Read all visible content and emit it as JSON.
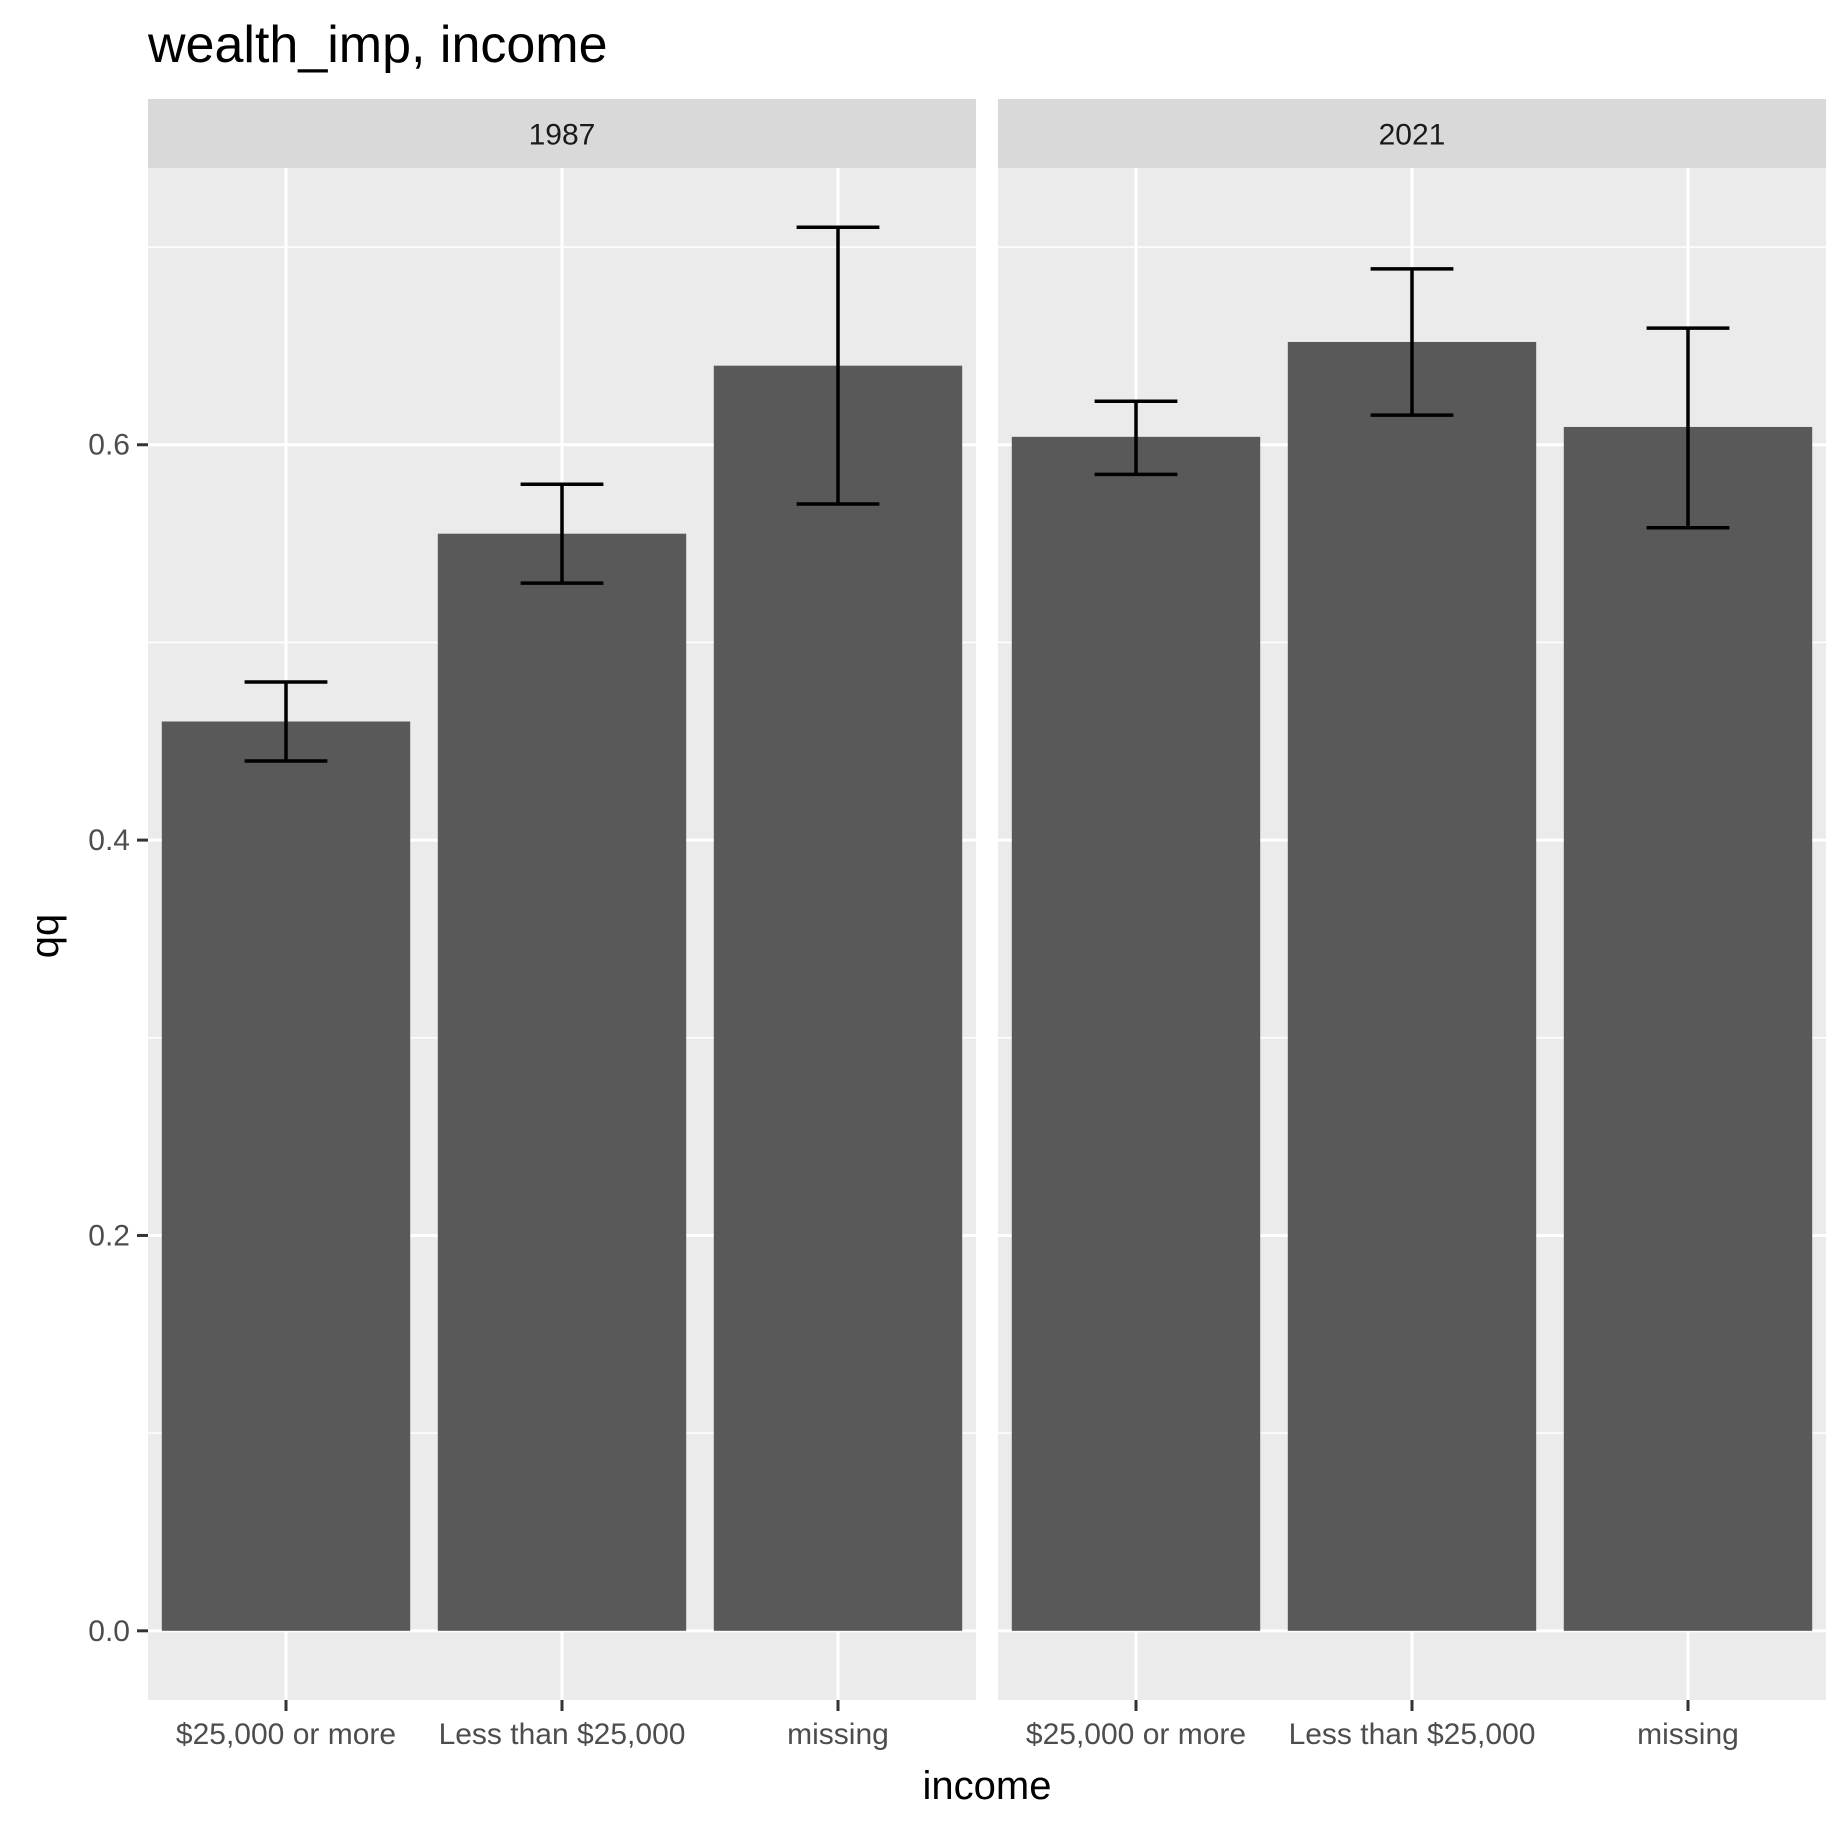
{
  "chart_data": {
    "type": "bar",
    "title": "wealth_imp, income",
    "xlabel": "income",
    "ylabel": "qq",
    "ylim": [
      -0.035,
      0.74
    ],
    "yticks": [
      0.0,
      0.2,
      0.4,
      0.6
    ],
    "ytick_labels": [
      "0.0",
      "0.2",
      "0.4",
      "0.6"
    ],
    "categories": [
      "$25,000 or more",
      "Less than $25,000",
      "missing"
    ],
    "facets": [
      {
        "label": "1987",
        "values": [
          0.46,
          0.555,
          0.64
        ],
        "error_low": [
          0.44,
          0.53,
          0.57
        ],
        "error_high": [
          0.48,
          0.58,
          0.71
        ]
      },
      {
        "label": "2021",
        "values": [
          0.604,
          0.652,
          0.609
        ],
        "error_low": [
          0.585,
          0.615,
          0.558
        ],
        "error_high": [
          0.622,
          0.689,
          0.659
        ]
      }
    ],
    "grid": true,
    "colors": {
      "panel_background": "#ebebeb",
      "strip_background": "#d9d9d9",
      "bar_fill": "#595959",
      "error_bar": "#000000",
      "grid_line": "#ffffff"
    }
  }
}
